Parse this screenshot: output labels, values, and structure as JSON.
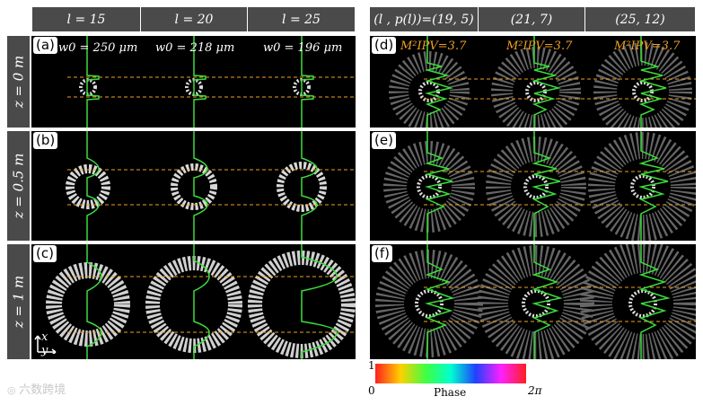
{
  "headers_left": [
    "l = 15",
    "l = 20",
    "l = 25"
  ],
  "headers_right": [
    "(l , p(l))=(19, 5)",
    "(21, 7)",
    "(25, 12)"
  ],
  "row_labels": [
    "z = 0 m",
    "z = 0.5 m",
    "z = 1 m"
  ],
  "panel_tags": [
    "(a)",
    "(b)",
    "(c)",
    "(d)",
    "(e)",
    "(f)"
  ],
  "w0_labels": [
    "w0 = 250 μm",
    "w0 = 218 μm",
    "w0 = 196 μm"
  ],
  "m2_label": "M²IPV=3.7",
  "axes_label": "x y",
  "colorbar": {
    "title": "Phase",
    "min": "0",
    "max": "2π",
    "top": "1"
  },
  "watermark": "六数跨境",
  "colors": {
    "profile_line": "#3cdc3c",
    "dashed_line": "#f0a020",
    "header_bg": "#4a4a4a"
  }
}
